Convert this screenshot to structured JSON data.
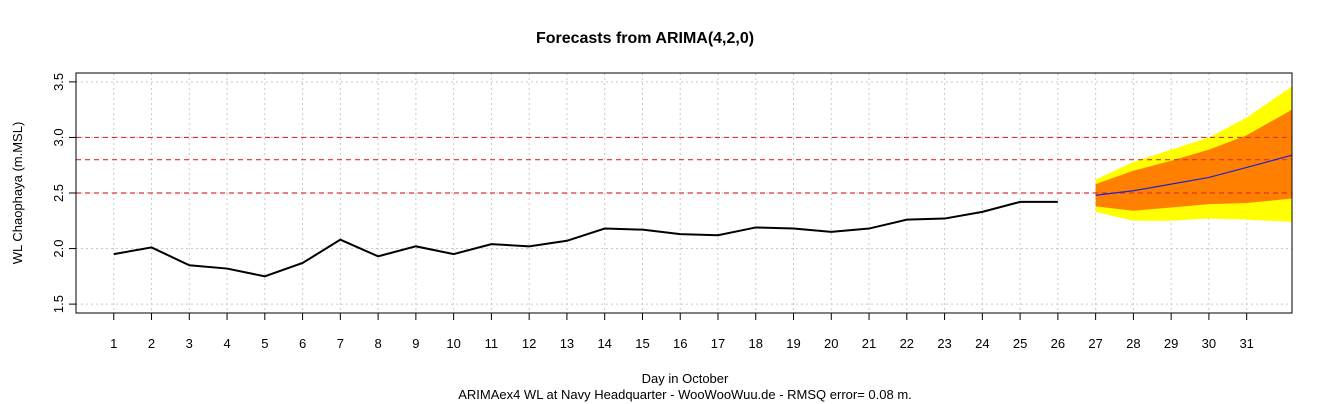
{
  "chart_data": {
    "type": "line",
    "title": "Forecasts from ARIMA(4,2,0)",
    "xlabel": "Day in October",
    "ylabel": "WL Chaophaya (m.MSL)",
    "footer": "ARIMAex4 WL at Navy Headquarter - WooWooWuu.de - RMSQ error= 0.08  m.",
    "xlim": [
      0,
      32.2
    ],
    "ylim": [
      1.42,
      3.58
    ],
    "x_ticks": [
      1,
      2,
      3,
      4,
      5,
      6,
      7,
      8,
      9,
      10,
      11,
      12,
      13,
      14,
      15,
      16,
      17,
      18,
      19,
      20,
      21,
      22,
      23,
      24,
      25,
      26,
      27,
      28,
      29,
      30,
      31
    ],
    "x_tick_labels": [
      "1",
      "2",
      "3",
      "4",
      "5",
      "6",
      "7",
      "8",
      "9",
      "10",
      "11",
      "12",
      "13",
      "14",
      "15",
      "16",
      "17",
      "18",
      "19",
      "20",
      "21",
      "22",
      "23",
      "24",
      "25",
      "26",
      "27",
      "28",
      "29",
      "30",
      "31"
    ],
    "y_ticks": [
      1.5,
      2.0,
      2.5,
      3.0,
      3.5
    ],
    "y_tick_labels": [
      "1.5",
      "2.0",
      "2.5",
      "3.0",
      "3.5"
    ],
    "grid": true,
    "reference_lines": [
      2.5,
      2.8,
      3.0
    ],
    "colors": {
      "observed": "#000000",
      "forecast": "#2222cc",
      "band_80": "#ff8000",
      "band_95": "#ffff00",
      "reference": "#e03030",
      "grid": "#c8c8c8"
    },
    "series": [
      {
        "x": [
          1,
          2,
          3,
          4,
          5,
          6,
          7,
          8,
          9,
          10,
          11,
          12,
          13,
          14,
          15,
          16,
          17,
          18,
          19,
          20,
          21,
          22,
          23,
          24,
          25,
          26
        ],
        "values": [
          1.95,
          2.01,
          1.85,
          1.82,
          1.75,
          1.87,
          2.08,
          1.93,
          2.02,
          1.95,
          2.04,
          2.02,
          2.07,
          2.18,
          2.17,
          2.13,
          2.12,
          2.19,
          2.18,
          2.15,
          2.18,
          2.26,
          2.27,
          2.33,
          2.42,
          2.42
        ]
      },
      {
        "x": [
          27,
          28,
          29,
          30,
          31,
          32.2
        ],
        "values": [
          2.48,
          2.52,
          2.58,
          2.64,
          2.73,
          2.84
        ],
        "lower80": [
          2.38,
          2.34,
          2.37,
          2.4,
          2.41,
          2.45
        ],
        "upper80": [
          2.58,
          2.7,
          2.79,
          2.89,
          3.02,
          3.25
        ],
        "lower95": [
          2.33,
          2.25,
          2.25,
          2.27,
          2.26,
          2.24
        ],
        "upper95": [
          2.62,
          2.78,
          2.89,
          3.0,
          3.18,
          3.46
        ]
      }
    ]
  }
}
